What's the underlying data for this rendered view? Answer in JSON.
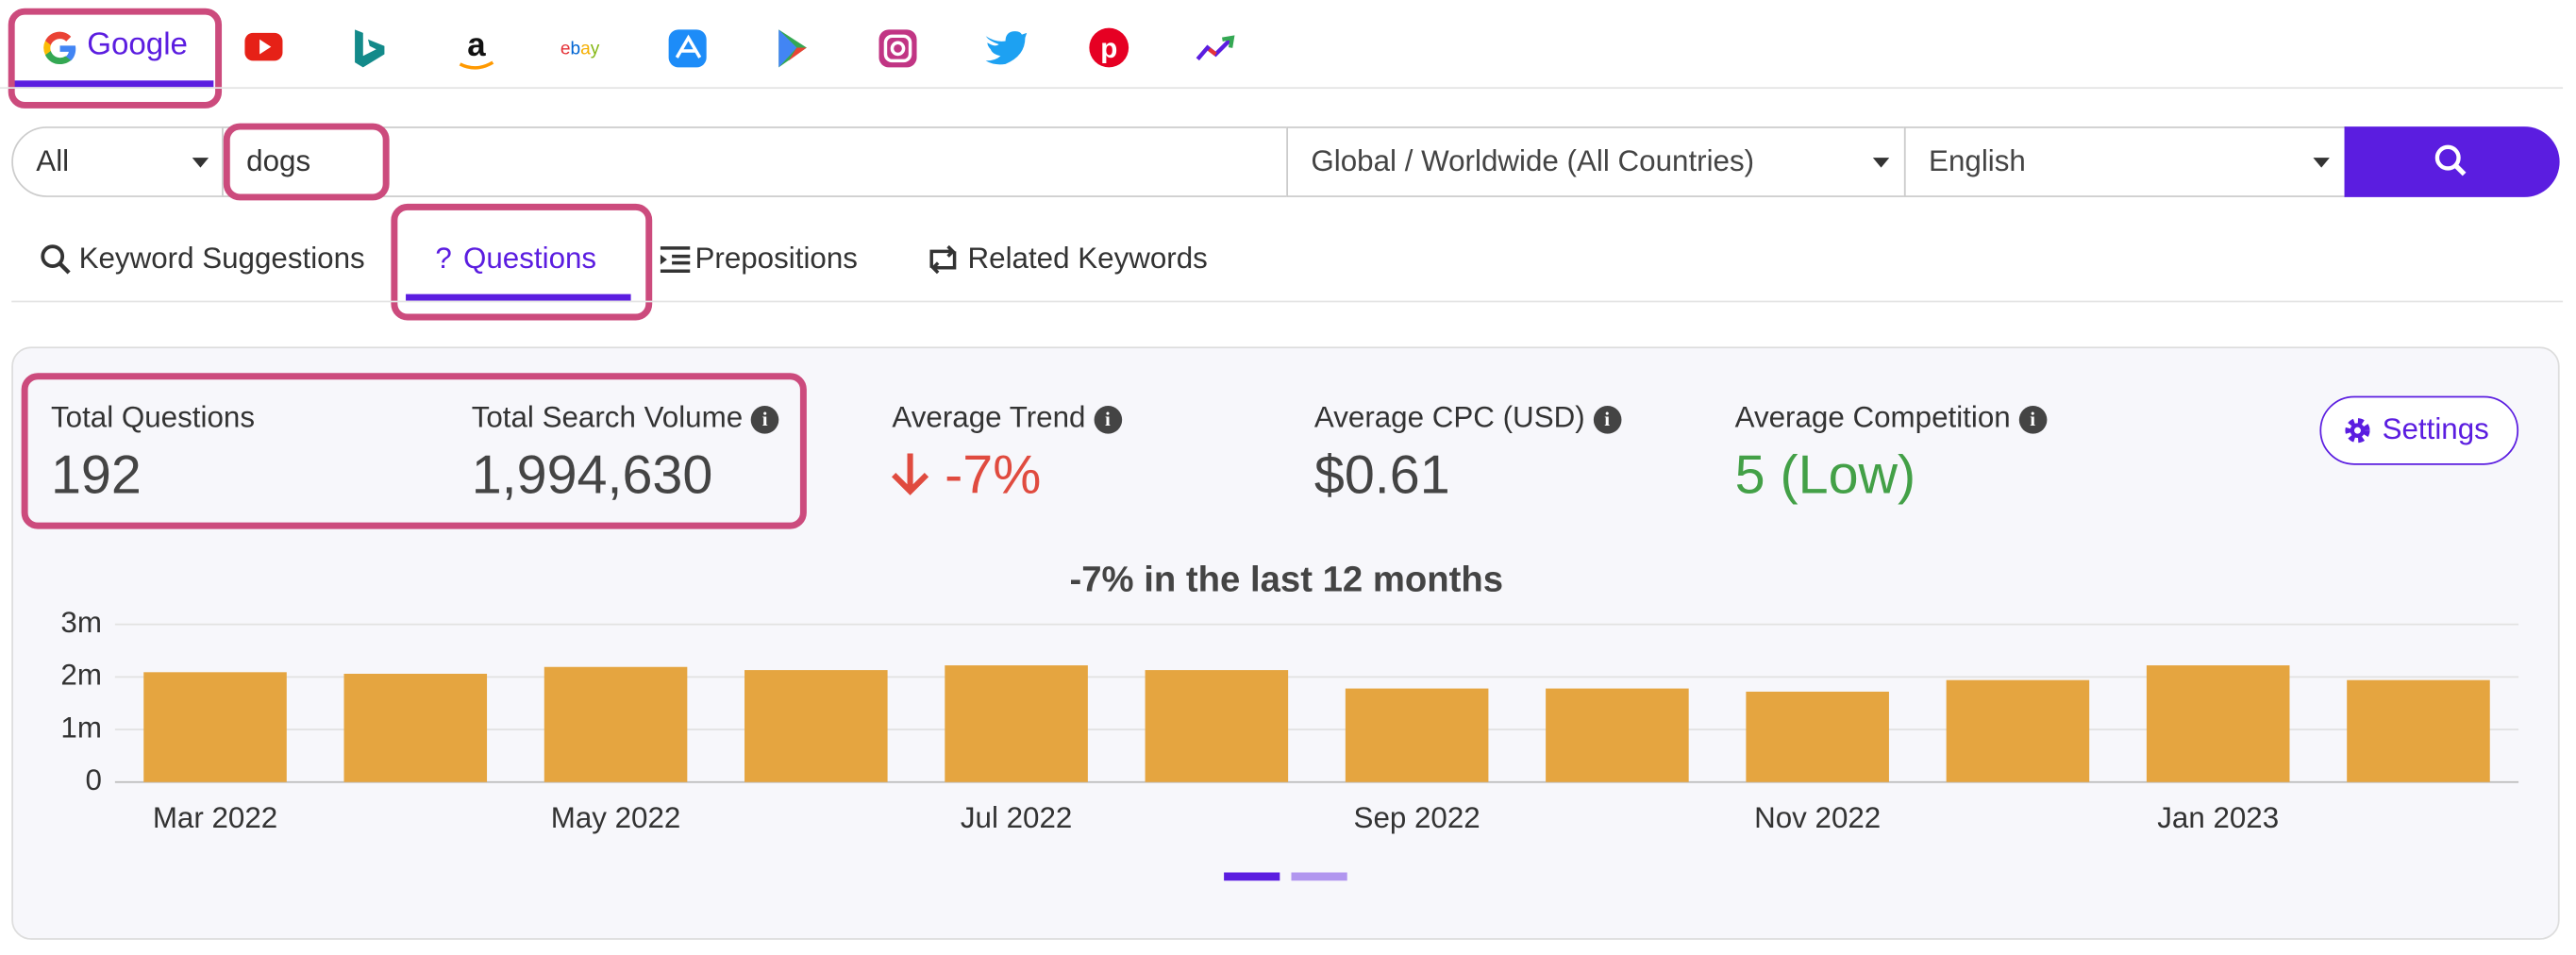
{
  "engine": "Google",
  "search": {
    "filter": "All",
    "query": "dogs",
    "location": "Global / Worldwide (All Countries)",
    "language": "English"
  },
  "tabs": [
    "Keyword Suggestions",
    "Questions",
    "Prepositions",
    "Related Keywords"
  ],
  "metrics": [
    {
      "label": "Total Questions",
      "value": "192"
    },
    {
      "label": "Total Search Volume",
      "value": "1,994,630"
    },
    {
      "label": "Average Trend",
      "value": "-7%"
    },
    {
      "label": "Average CPC (USD)",
      "value": "$0.61"
    },
    {
      "label": "Average Competition",
      "value": "5 (Low)"
    }
  ],
  "settings": "Settings",
  "chart_data": {
    "type": "bar",
    "title": "-7% in the last 12 months",
    "categories": [
      "Mar 2022",
      null,
      "May 2022",
      null,
      "Jul 2022",
      null,
      "Sep 2022",
      null,
      "Nov 2022",
      null,
      "Jan 2023",
      null
    ],
    "values": [
      2090000,
      2060000,
      2190000,
      2130000,
      2220000,
      2130000,
      1780000,
      1780000,
      1720000,
      1940000,
      2220000,
      1940000
    ],
    "color": "#e5a540",
    "ylim": [
      0,
      3000000
    ],
    "yticks": [
      0,
      {
        "value": 1000000,
        "label": "1m"
      },
      {
        "value": 2000000,
        "label": "2m"
      },
      {
        "value": 3000000,
        "label": "3m"
      }
    ],
    "grid": true
  }
}
